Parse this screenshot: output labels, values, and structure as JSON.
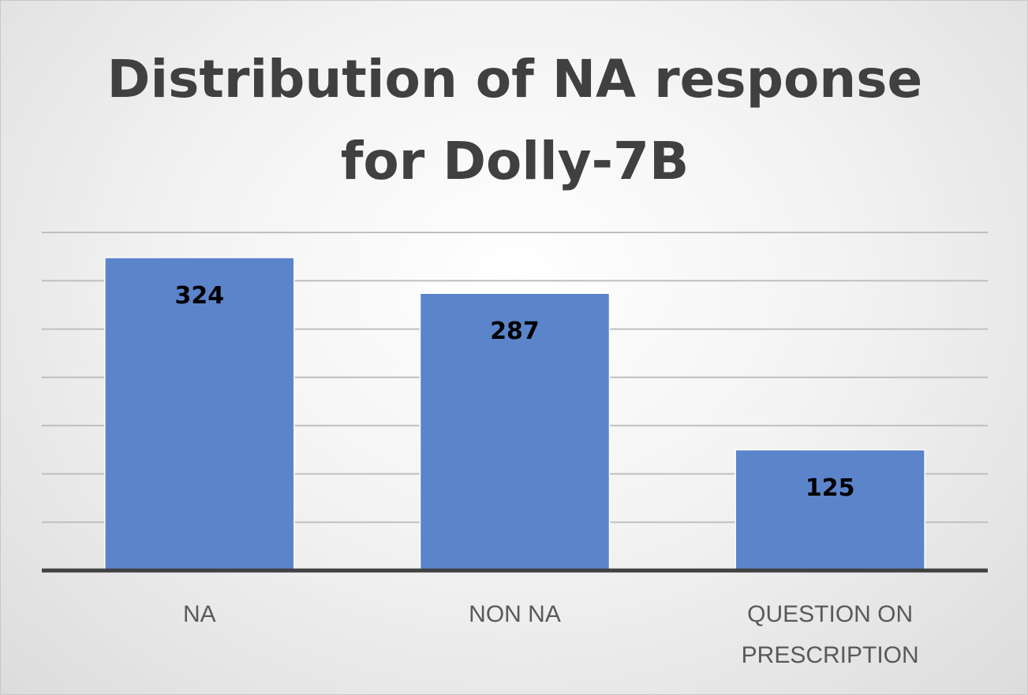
{
  "chart_data": {
    "type": "bar",
    "title_lines": [
      "Distribution of NA response",
      "for Dolly-7B"
    ],
    "categories": [
      [
        "NA"
      ],
      [
        "NON NA"
      ],
      [
        "QUESTION ON",
        "PRESCRIPTION"
      ]
    ],
    "values": [
      324,
      287,
      125
    ],
    "data_labels": [
      "324",
      "287",
      "125"
    ],
    "ylim": [
      0,
      350
    ],
    "grid": true,
    "legend": "none",
    "colors": {
      "bar": "#5b84cb",
      "bar_border": "#ffffff",
      "grid": "#bfbfbf",
      "axis": "#404040"
    }
  }
}
